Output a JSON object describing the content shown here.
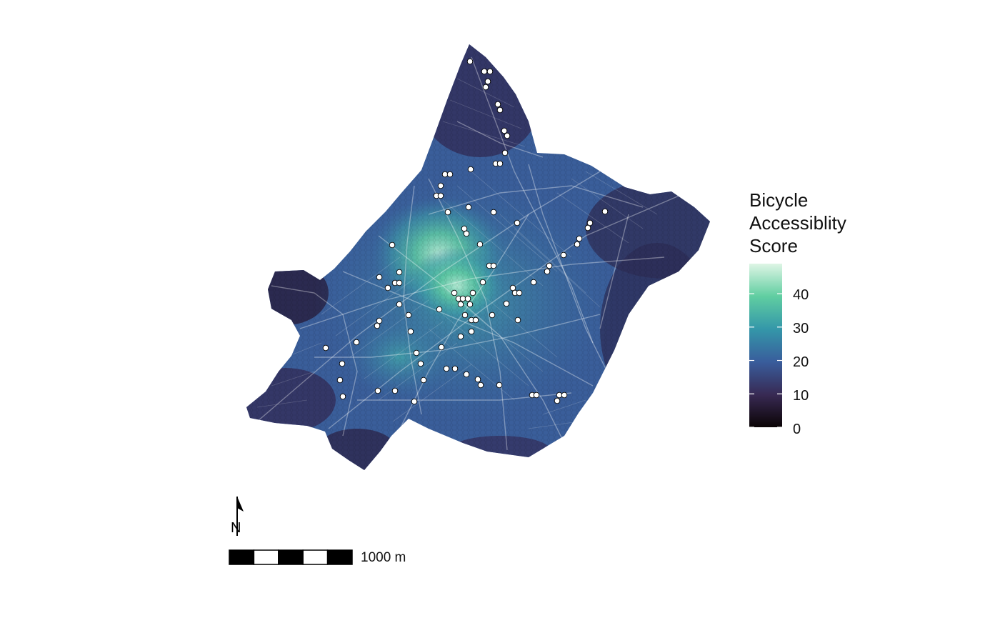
{
  "legend": {
    "title_lines": [
      "Bicycle",
      "Accessiblity",
      "Score"
    ],
    "min": 0,
    "max": 49,
    "ticks": [
      0,
      10,
      20,
      30,
      40
    ],
    "gradient_colors": [
      "#0b0405",
      "#382a54",
      "#395d9c",
      "#3497a9",
      "#60cea1",
      "#def5e5"
    ]
  },
  "scale_bar": {
    "label": "1000 m",
    "segments": 5
  },
  "north_arrow": {
    "label": "N"
  },
  "colors": {
    "road_lines": "#ffffff",
    "station_fill": "#ffffff",
    "station_stroke": "#000000"
  }
}
